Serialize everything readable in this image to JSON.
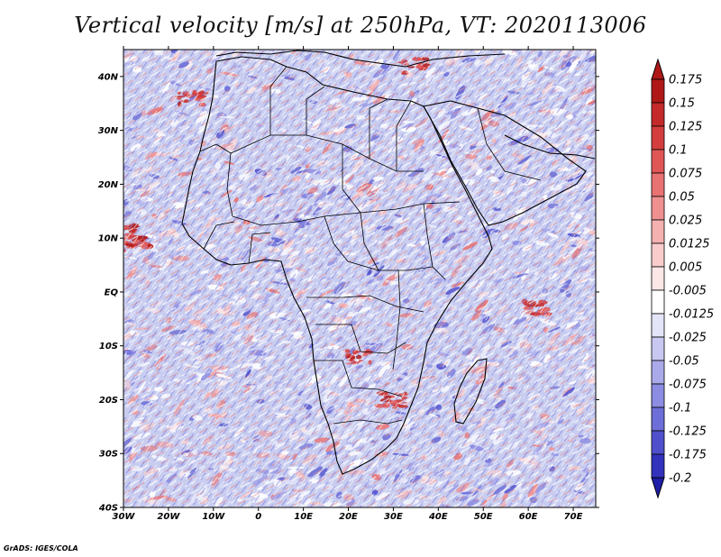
{
  "title": "Vertical velocity [m/s] at 250hPa, VT: 2020113006",
  "credit": "GrADS: IGES/COLA",
  "map": {
    "lon_range": [
      -30,
      75
    ],
    "lat_range": [
      -40,
      45
    ],
    "lat_ticks": [
      {
        "value": 40,
        "label": "40N"
      },
      {
        "value": 30,
        "label": "30N"
      },
      {
        "value": 20,
        "label": "20N"
      },
      {
        "value": 10,
        "label": "10N"
      },
      {
        "value": 0,
        "label": "EQ"
      },
      {
        "value": -10,
        "label": "10S"
      },
      {
        "value": -20,
        "label": "20S"
      },
      {
        "value": -30,
        "label": "30S"
      },
      {
        "value": -40,
        "label": "40S"
      }
    ],
    "lon_ticks": [
      {
        "value": -30,
        "label": "30W"
      },
      {
        "value": -20,
        "label": "20W"
      },
      {
        "value": -10,
        "label": "10W"
      },
      {
        "value": 0,
        "label": "0"
      },
      {
        "value": 10,
        "label": "10E"
      },
      {
        "value": 20,
        "label": "20E"
      },
      {
        "value": 30,
        "label": "30E"
      },
      {
        "value": 40,
        "label": "40E"
      },
      {
        "value": 50,
        "label": "50E"
      },
      {
        "value": 60,
        "label": "60E"
      },
      {
        "value": 70,
        "label": "70E"
      }
    ],
    "field_background": "#c8cdf0"
  },
  "colorbar": {
    "levels": [
      {
        "label": "0.175",
        "color": "#b01818"
      },
      {
        "label": "0.15",
        "color": "#c42a2a"
      },
      {
        "label": "0.125",
        "color": "#d43d3d"
      },
      {
        "label": "0.1",
        "color": "#e05555"
      },
      {
        "label": "0.075",
        "color": "#e87272"
      },
      {
        "label": "0.05",
        "color": "#ef9090"
      },
      {
        "label": "0.025",
        "color": "#f5b0b0"
      },
      {
        "label": "0.0125",
        "color": "#f9cccc"
      },
      {
        "label": "0.005",
        "color": "#fce6e6"
      },
      {
        "label": "-0.005",
        "color": "#ffffff"
      },
      {
        "label": "-0.0125",
        "color": "#e4e4f8"
      },
      {
        "label": "-0.025",
        "color": "#c8c8f2"
      },
      {
        "label": "-0.05",
        "color": "#aaaaea"
      },
      {
        "label": "-0.075",
        "color": "#8c8ce2"
      },
      {
        "label": "-0.1",
        "color": "#6e6ed8"
      },
      {
        "label": "-0.125",
        "color": "#5050cc"
      },
      {
        "label": "-0.175",
        "color": "#3232bc"
      },
      {
        "label": "-0.2",
        "color": "#1e1ea8"
      }
    ],
    "top_cap_color": "#b01818",
    "bottom_cap_color": "#1e1ea8"
  }
}
